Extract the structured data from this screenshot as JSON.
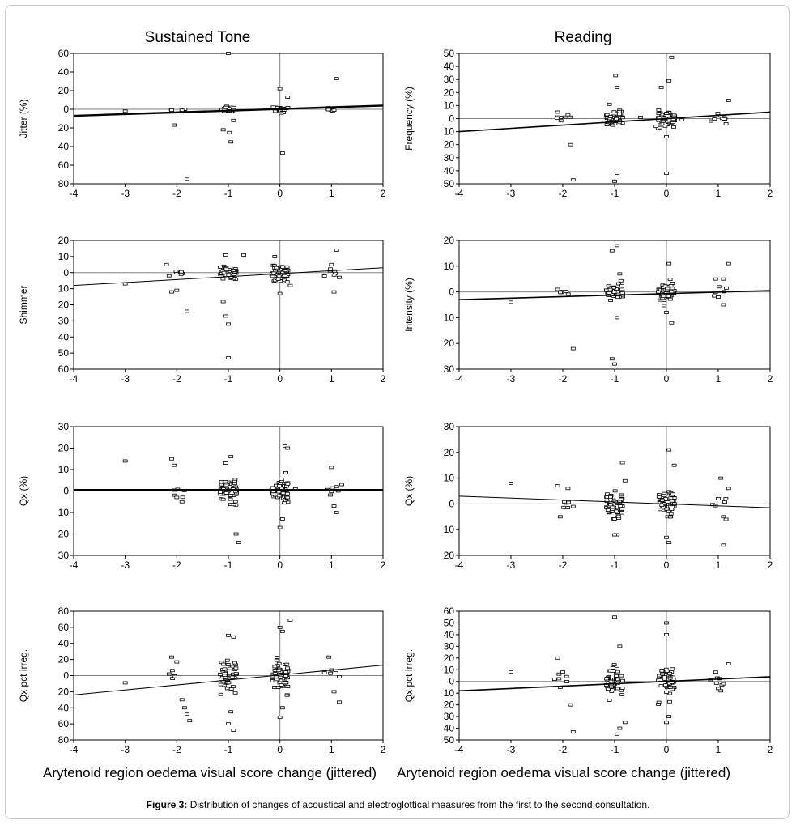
{
  "columns": [
    "Sustained Tone",
    "Reading"
  ],
  "caption": {
    "label": "Figure 3:",
    "text": "Distribution of changes of acoustical and electroglottical measures from the first to the second consultation."
  },
  "colors": {
    "axis": "#000000",
    "ref": "#808080",
    "marker": "#000000"
  },
  "chart_data": [
    {
      "type": "scatter",
      "column": "Sustained Tone",
      "ylabel": "Jitter (%)",
      "xlabel": "Arytenoid region oedema visual score change (jittered)",
      "xlim": [
        -4,
        2
      ],
      "ylim": [
        -80,
        60
      ],
      "xticks": [
        -4,
        -3,
        -2,
        -1,
        0,
        1,
        2
      ],
      "yticks": [
        60,
        40,
        20,
        0,
        -20,
        -40,
        -60,
        -80
      ],
      "ytick_labels": [
        "60",
        "40",
        "20",
        "0",
        "20",
        "40",
        "60",
        "80"
      ],
      "fit_line": {
        "from": [
          -4,
          -7
        ],
        "to": [
          2,
          4
        ]
      },
      "line_weight": "thick",
      "spread": 4,
      "points": [
        [
          -3,
          -2
        ],
        [
          -2.1,
          -1
        ],
        [
          -2.05,
          -17
        ],
        [
          -1.9,
          -1
        ],
        [
          -1.8,
          -75
        ],
        [
          -1.05,
          2
        ],
        [
          -1,
          60
        ],
        [
          -0.98,
          -25
        ],
        [
          -0.95,
          -35
        ],
        [
          -1.1,
          -22
        ],
        [
          -0.9,
          -12
        ],
        [
          0,
          22
        ],
        [
          0.02,
          -4
        ],
        [
          0.05,
          -47
        ],
        [
          0.15,
          13
        ],
        [
          1.1,
          33
        ],
        [
          1.05,
          -1
        ]
      ],
      "clusters": [
        {
          "x": -1,
          "n": 16,
          "sd": 2.5
        },
        {
          "x": 0,
          "n": 20,
          "sd": 3
        },
        {
          "x": 1,
          "n": 6,
          "sd": 1.5
        },
        {
          "x": -2,
          "n": 4,
          "sd": 1
        }
      ]
    },
    {
      "type": "scatter",
      "column": "Reading",
      "ylabel": "Frequency (%)",
      "xlabel": "Arytenoid region oedema visual score change (jittered)",
      "xlim": [
        -4,
        2
      ],
      "ylim": [
        -50,
        50
      ],
      "xticks": [
        -4,
        -3,
        -2,
        -1,
        0,
        1,
        2
      ],
      "yticks": [
        50,
        40,
        30,
        20,
        10,
        0,
        -10,
        -20,
        -30,
        -40,
        -50
      ],
      "ytick_labels": [
        "50",
        "40",
        "30",
        "20",
        "10",
        "0",
        "10",
        "20",
        "30",
        "40",
        "50"
      ],
      "fit_line": {
        "from": [
          -4,
          -10
        ],
        "to": [
          2,
          5
        ]
      },
      "line_weight": "medium",
      "spread": 4,
      "points": [
        [
          -2.1,
          5
        ],
        [
          -1.9,
          3
        ],
        [
          -1.85,
          -20
        ],
        [
          -1.8,
          -47
        ],
        [
          -1,
          -48
        ],
        [
          -0.95,
          -42
        ],
        [
          -0.98,
          33
        ],
        [
          -0.95,
          24
        ],
        [
          -1.1,
          11
        ],
        [
          -0.2,
          -6
        ],
        [
          -0.1,
          24
        ],
        [
          0.05,
          29
        ],
        [
          0.1,
          47
        ],
        [
          0,
          -42
        ],
        [
          0,
          -14
        ],
        [
          1.05,
          2
        ],
        [
          1.2,
          14
        ],
        [
          1.15,
          -4
        ],
        [
          -0.5,
          1
        ],
        [
          0.3,
          -1
        ]
      ],
      "clusters": [
        {
          "x": -1,
          "n": 55,
          "sd": 4
        },
        {
          "x": 0,
          "n": 55,
          "sd": 4
        },
        {
          "x": 1,
          "n": 8,
          "sd": 2
        },
        {
          "x": -2,
          "n": 6,
          "sd": 2
        }
      ]
    },
    {
      "type": "scatter",
      "column": "Sustained Tone",
      "ylabel": "Shimmer",
      "xlabel": "Arytenoid region oedema visual score change (jittered)",
      "xlim": [
        -4,
        2
      ],
      "ylim": [
        -60,
        20
      ],
      "xticks": [
        -4,
        -3,
        -2,
        -1,
        0,
        1,
        2
      ],
      "yticks": [
        20,
        10,
        0,
        -10,
        -20,
        -30,
        -40,
        -50,
        -60
      ],
      "ytick_labels": [
        "20",
        "10",
        "0",
        "10",
        "20",
        "30",
        "40",
        "50",
        "60"
      ],
      "fit_line": {
        "from": [
          -4,
          -8
        ],
        "to": [
          2,
          3
        ]
      },
      "line_weight": "thin",
      "spread": 3,
      "points": [
        [
          -3,
          -7
        ],
        [
          -2.2,
          5
        ],
        [
          -2.1,
          -12
        ],
        [
          -2,
          -11
        ],
        [
          -1.8,
          -24
        ],
        [
          -1.05,
          11
        ],
        [
          -1,
          -53
        ],
        [
          -1,
          -32
        ],
        [
          -1.05,
          -27
        ],
        [
          -1.1,
          -18
        ],
        [
          -0.7,
          11
        ],
        [
          -0.1,
          10
        ],
        [
          0,
          -13
        ],
        [
          0.1,
          -2
        ],
        [
          0.2,
          -8
        ],
        [
          1.1,
          14
        ],
        [
          1.05,
          -12
        ],
        [
          1,
          5
        ],
        [
          1.15,
          -3
        ],
        [
          -2.15,
          -2
        ]
      ],
      "clusters": [
        {
          "x": -1,
          "n": 45,
          "sd": 3
        },
        {
          "x": 0,
          "n": 55,
          "sd": 3
        },
        {
          "x": 1,
          "n": 6,
          "sd": 2
        },
        {
          "x": -2,
          "n": 5,
          "sd": 1.5
        }
      ]
    },
    {
      "type": "scatter",
      "column": "Reading",
      "ylabel": "Intensity (%)",
      "xlabel": "Arytenoid region oedema visual score change (jittered)",
      "xlim": [
        -4,
        2
      ],
      "ylim": [
        -30,
        20
      ],
      "xticks": [
        -4,
        -3,
        -2,
        -1,
        0,
        1,
        2
      ],
      "yticks": [
        20,
        10,
        0,
        -10,
        -20,
        -30
      ],
      "ytick_labels": [
        "20",
        "10",
        "0",
        "10",
        "20",
        "30"
      ],
      "fit_line": {
        "from": [
          -4,
          -3
        ],
        "to": [
          2,
          0.5
        ]
      },
      "line_weight": "medium",
      "spread": 2,
      "points": [
        [
          -3,
          -4
        ],
        [
          -2.1,
          1
        ],
        [
          -1.8,
          -22
        ],
        [
          -1.05,
          16
        ],
        [
          -0.95,
          18
        ],
        [
          -1.05,
          -26
        ],
        [
          -1,
          -28
        ],
        [
          -0.95,
          -10
        ],
        [
          -0.9,
          7
        ],
        [
          0.05,
          11
        ],
        [
          0.1,
          -12
        ],
        [
          0,
          -8
        ],
        [
          0.95,
          5
        ],
        [
          1.1,
          5
        ],
        [
          1.2,
          11
        ],
        [
          1.1,
          -5
        ],
        [
          1,
          -2
        ]
      ],
      "clusters": [
        {
          "x": -1,
          "n": 50,
          "sd": 2
        },
        {
          "x": 0,
          "n": 55,
          "sd": 2.2
        },
        {
          "x": 1,
          "n": 5,
          "sd": 1.5
        },
        {
          "x": -2,
          "n": 5,
          "sd": 1
        }
      ]
    },
    {
      "type": "scatter",
      "column": "Sustained Tone",
      "ylabel": "Qx (%)",
      "xlabel": "Arytenoid region oedema visual score change (jittered)",
      "xlim": [
        -4,
        2
      ],
      "ylim": [
        -30,
        30
      ],
      "xticks": [
        -4,
        -3,
        -2,
        -1,
        0,
        1,
        2
      ],
      "yticks": [
        30,
        20,
        10,
        0,
        -10,
        -20,
        -30
      ],
      "ytick_labels": [
        "30",
        "20",
        "10",
        "0",
        "10",
        "20",
        "30"
      ],
      "fit_line": {
        "from": [
          -4,
          0.5
        ],
        "to": [
          2,
          0.5
        ]
      },
      "line_weight": "thick",
      "spread": 3,
      "points": [
        [
          -3,
          14
        ],
        [
          -2.1,
          15
        ],
        [
          -2.05,
          12
        ],
        [
          -2,
          -3
        ],
        [
          -1.9,
          -5
        ],
        [
          -0.95,
          16
        ],
        [
          -0.85,
          -20
        ],
        [
          -0.8,
          -24
        ],
        [
          -1.05,
          13
        ],
        [
          0.1,
          21
        ],
        [
          0.15,
          20
        ],
        [
          0,
          -17
        ],
        [
          0.05,
          -13
        ],
        [
          1,
          11
        ],
        [
          1.05,
          -7
        ],
        [
          1.1,
          -10
        ],
        [
          1.1,
          2
        ],
        [
          1.2,
          3
        ],
        [
          0.3,
          1
        ]
      ],
      "clusters": [
        {
          "x": -1,
          "n": 55,
          "sd": 4.5
        },
        {
          "x": 0,
          "n": 60,
          "sd": 4.5
        },
        {
          "x": 1,
          "n": 5,
          "sd": 2
        },
        {
          "x": -2,
          "n": 5,
          "sd": 1.5
        }
      ]
    },
    {
      "type": "scatter",
      "column": "Reading",
      "ylabel": "Qx (%)",
      "xlabel": "Arytenoid region oedema visual score change (jittered)",
      "xlim": [
        -4,
        2
      ],
      "ylim": [
        -20,
        30
      ],
      "xticks": [
        -4,
        -3,
        -2,
        -1,
        0,
        1,
        2
      ],
      "yticks": [
        30,
        20,
        10,
        0,
        -10,
        -20
      ],
      "ytick_labels": [
        "30",
        "20",
        "10",
        "0",
        "10",
        "20"
      ],
      "fit_line": {
        "from": [
          -4,
          3
        ],
        "to": [
          2,
          -1.5
        ]
      },
      "line_weight": "thin",
      "spread": 2,
      "points": [
        [
          -3,
          8
        ],
        [
          -2.1,
          7
        ],
        [
          -1.9,
          6
        ],
        [
          -2.05,
          -5
        ],
        [
          -1.8,
          -1
        ],
        [
          -0.95,
          -12
        ],
        [
          -1,
          -12
        ],
        [
          -0.85,
          16
        ],
        [
          -0.8,
          9
        ],
        [
          0.05,
          21
        ],
        [
          0.15,
          15
        ],
        [
          0,
          -13
        ],
        [
          0.05,
          -15
        ],
        [
          1.05,
          10
        ],
        [
          1.1,
          -5
        ],
        [
          1.15,
          -6
        ],
        [
          1.1,
          -16
        ],
        [
          1.2,
          6
        ],
        [
          1,
          2
        ]
      ],
      "clusters": [
        {
          "x": -1,
          "n": 50,
          "sd": 3.5
        },
        {
          "x": 0,
          "n": 55,
          "sd": 3
        },
        {
          "x": 1,
          "n": 4,
          "sd": 2
        },
        {
          "x": -2,
          "n": 5,
          "sd": 2
        }
      ]
    },
    {
      "type": "scatter",
      "column": "Sustained Tone",
      "ylabel": "Qx pct irreg.",
      "xlabel": "Arytenoid region oedema visual score change (jittered)",
      "xlim": [
        -4,
        2
      ],
      "ylim": [
        -80,
        80
      ],
      "xticks": [
        -4,
        -3,
        -2,
        -1,
        0,
        1,
        2
      ],
      "yticks": [
        80,
        60,
        40,
        20,
        0,
        -20,
        -40,
        -60,
        -80
      ],
      "ytick_labels": [
        "80",
        "60",
        "40",
        "20",
        "0",
        "20",
        "40",
        "60",
        "80"
      ],
      "fit_line": {
        "from": [
          -4,
          -24
        ],
        "to": [
          2,
          13
        ]
      },
      "line_weight": "thin",
      "spread": 12,
      "points": [
        [
          -3,
          -9
        ],
        [
          -2.1,
          23
        ],
        [
          -2,
          17
        ],
        [
          -2.15,
          2
        ],
        [
          -1.9,
          -30
        ],
        [
          -1.8,
          -48
        ],
        [
          -1.75,
          -56
        ],
        [
          -1.85,
          -40
        ],
        [
          -1,
          50
        ],
        [
          -0.9,
          48
        ],
        [
          -0.95,
          -45
        ],
        [
          -0.9,
          -68
        ],
        [
          -1,
          -60
        ],
        [
          0,
          60
        ],
        [
          0.05,
          55
        ],
        [
          0.2,
          69
        ],
        [
          0,
          -52
        ],
        [
          0.05,
          -40
        ],
        [
          0.95,
          23
        ],
        [
          1,
          7
        ],
        [
          1.05,
          -20
        ],
        [
          1.15,
          -33
        ]
      ],
      "clusters": [
        {
          "x": -1,
          "n": 55,
          "sd": 15
        },
        {
          "x": 0,
          "n": 55,
          "sd": 14
        },
        {
          "x": 1,
          "n": 4,
          "sd": 6
        },
        {
          "x": -2,
          "n": 4,
          "sd": 6
        }
      ]
    },
    {
      "type": "scatter",
      "column": "Reading",
      "ylabel": "Qx pct irreg.",
      "xlabel": "Arytenoid region oedema visual score change (jittered)",
      "xlim": [
        -4,
        2
      ],
      "ylim": [
        -50,
        60
      ],
      "xticks": [
        -4,
        -3,
        -2,
        -1,
        0,
        1,
        2
      ],
      "yticks": [
        60,
        50,
        40,
        30,
        20,
        10,
        0,
        -10,
        -20,
        -30,
        -40,
        -50
      ],
      "ytick_labels": [
        "60",
        "50",
        "40",
        "30",
        "20",
        "10",
        "0",
        "10",
        "20",
        "30",
        "40",
        "50"
      ],
      "fit_line": {
        "from": [
          -4,
          -8
        ],
        "to": [
          2,
          4
        ]
      },
      "line_weight": "medium",
      "spread": 8,
      "points": [
        [
          -3,
          8
        ],
        [
          -2.1,
          20
        ],
        [
          -2,
          8
        ],
        [
          -2.05,
          -5
        ],
        [
          -1.8,
          -43
        ],
        [
          -1.85,
          -20
        ],
        [
          -1,
          55
        ],
        [
          -0.9,
          30
        ],
        [
          -0.95,
          -45
        ],
        [
          -0.9,
          -40
        ],
        [
          -0.8,
          -35
        ],
        [
          0,
          50
        ],
        [
          0,
          40
        ],
        [
          0.05,
          -30
        ],
        [
          0,
          -35
        ],
        [
          0.95,
          8
        ],
        [
          1,
          -6
        ],
        [
          1.05,
          -8
        ],
        [
          1.1,
          -2
        ],
        [
          1.2,
          15
        ]
      ],
      "clusters": [
        {
          "x": -1,
          "n": 55,
          "sd": 9
        },
        {
          "x": 0,
          "n": 55,
          "sd": 8
        },
        {
          "x": 1,
          "n": 5,
          "sd": 4
        },
        {
          "x": -2,
          "n": 5,
          "sd": 4
        }
      ]
    }
  ]
}
